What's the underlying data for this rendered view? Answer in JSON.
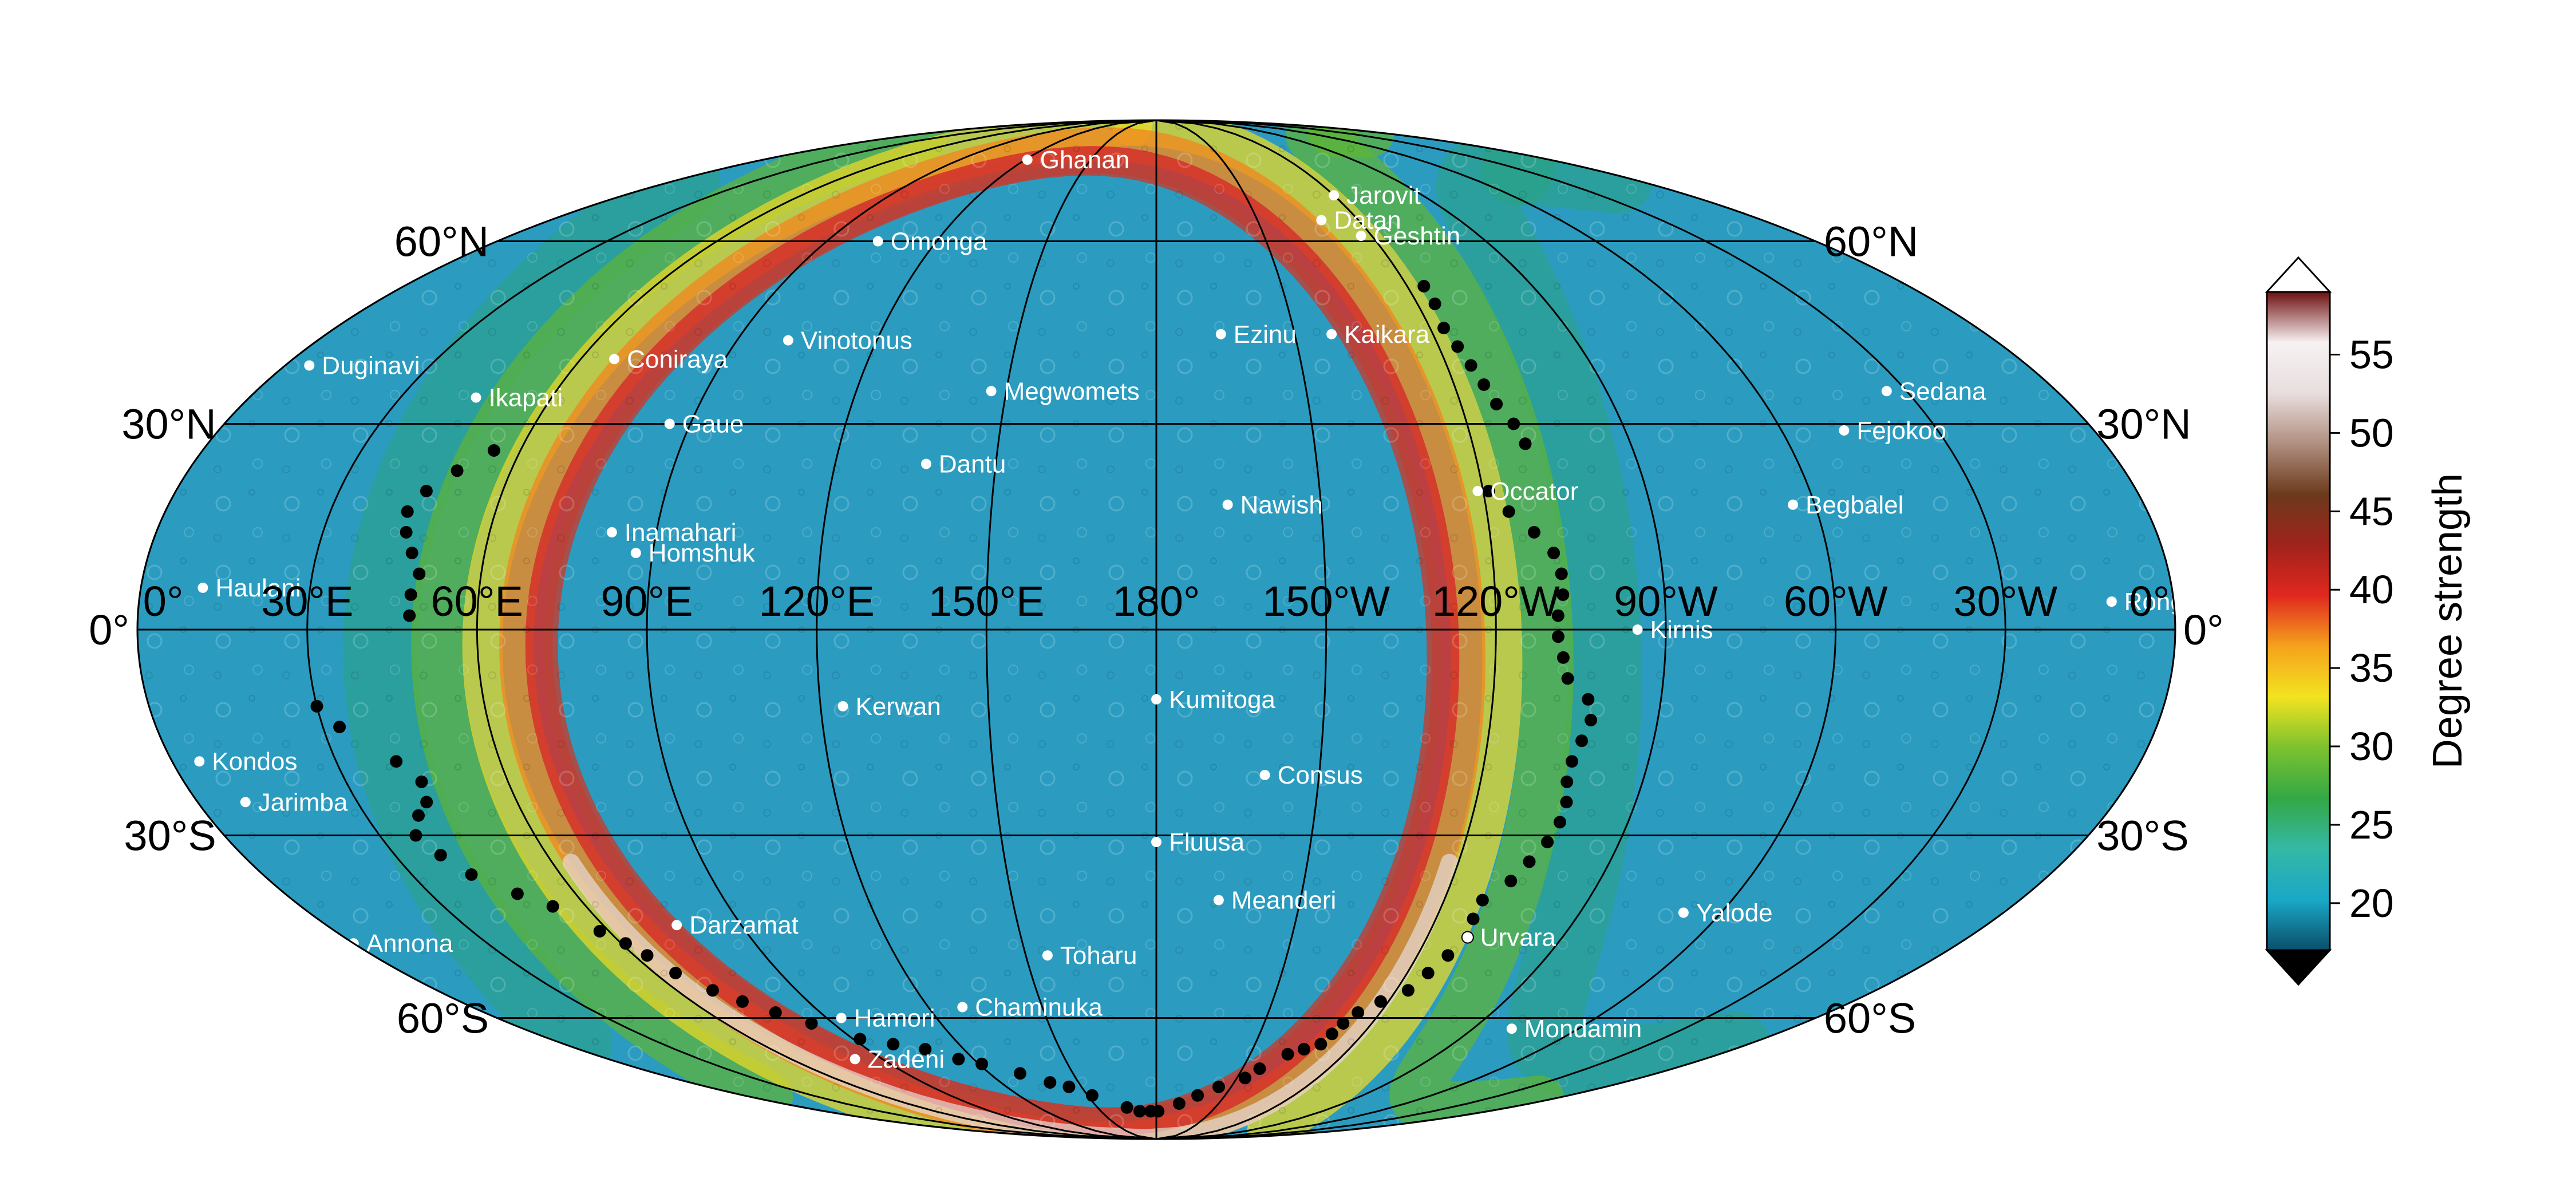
{
  "map": {
    "projection": "Mollweide",
    "central_meridian": "180°",
    "graticule": {
      "latitudes": [
        -60,
        -30,
        0,
        30,
        60
      ],
      "longitudes": [
        0,
        30,
        60,
        90,
        120,
        150,
        180,
        210,
        240,
        270,
        300,
        330,
        360
      ]
    },
    "latitude_labels": {
      "left": [
        {
          "lat": 60,
          "text": "60°N"
        },
        {
          "lat": 30,
          "text": "30°N"
        },
        {
          "lat": 0,
          "text": "0°"
        },
        {
          "lat": -30,
          "text": "30°S"
        },
        {
          "lat": -60,
          "text": "60°S"
        }
      ],
      "right": [
        {
          "lat": 60,
          "text": "60°N"
        },
        {
          "lat": 30,
          "text": "30°N"
        },
        {
          "lat": 0,
          "text": "0°"
        },
        {
          "lat": -30,
          "text": "30°S"
        },
        {
          "lat": -60,
          "text": "60°S"
        }
      ]
    },
    "longitude_labels": [
      {
        "lon": 0,
        "text": "0°"
      },
      {
        "lon": 30,
        "text": "30°E"
      },
      {
        "lon": 60,
        "text": "60°E"
      },
      {
        "lon": 90,
        "text": "90°E"
      },
      {
        "lon": 120,
        "text": "120°E"
      },
      {
        "lon": 150,
        "text": "150°E"
      },
      {
        "lon": 180,
        "text": "180°"
      },
      {
        "lon": 210,
        "text": "150°W"
      },
      {
        "lon": 240,
        "text": "120°W"
      },
      {
        "lon": 270,
        "text": "90°W"
      },
      {
        "lon": 300,
        "text": "60°W"
      },
      {
        "lon": 330,
        "text": "30°W"
      },
      {
        "lon": 360,
        "text": "0°"
      }
    ],
    "features": [
      {
        "name": "Ghanan",
        "lon": 121,
        "lat": 77
      },
      {
        "name": "Jarovit",
        "lon": 240,
        "lat": 69
      },
      {
        "name": "Datan",
        "lon": 229,
        "lat": 64
      },
      {
        "name": "Geshtin",
        "lon": 237,
        "lat": 61
      },
      {
        "name": "Omonga",
        "lon": 104,
        "lat": 60
      },
      {
        "name": "Ezinu",
        "lon": 194,
        "lat": 44
      },
      {
        "name": "Kaikara",
        "lon": 218,
        "lat": 44
      },
      {
        "name": "Coniraya",
        "lon": 67,
        "lat": 40
      },
      {
        "name": "Vinotonus",
        "lon": 101,
        "lat": 43
      },
      {
        "name": "Duginavi",
        "lon": 5,
        "lat": 39
      },
      {
        "name": "Megwomets",
        "lon": 147,
        "lat": 35
      },
      {
        "name": "Sedana",
        "lon": 326,
        "lat": 35
      },
      {
        "name": "Ikapati",
        "lon": 45,
        "lat": 34
      },
      {
        "name": "Gaue",
        "lon": 86,
        "lat": 30
      },
      {
        "name": "Fejokoo",
        "lon": 312,
        "lat": 29
      },
      {
        "name": "Dantu",
        "lon": 137,
        "lat": 24
      },
      {
        "name": "Occator",
        "lon": 239,
        "lat": 20
      },
      {
        "name": "Nawish",
        "lon": 193,
        "lat": 18
      },
      {
        "name": "Begbalel",
        "lon": 296,
        "lat": 18
      },
      {
        "name": "Inamahari",
        "lon": 82,
        "lat": 14
      },
      {
        "name": "Homshuk",
        "lon": 87,
        "lat": 11
      },
      {
        "name": "Haulani",
        "lon": 11,
        "lat": 6
      },
      {
        "name": "Rongo",
        "lon": 349,
        "lat": 4
      },
      {
        "name": "Kirnis",
        "lon": 265,
        "lat": 0
      },
      {
        "name": "Kerwan",
        "lon": 124,
        "lat": -11
      },
      {
        "name": "Kumitoga",
        "lon": 180,
        "lat": -10
      },
      {
        "name": "Consus",
        "lon": 200,
        "lat": -21
      },
      {
        "name": "Kondos",
        "lon": 5,
        "lat": -19
      },
      {
        "name": "Jarimba",
        "lon": 9,
        "lat": -25
      },
      {
        "name": "Fluusa",
        "lon": 180,
        "lat": -31
      },
      {
        "name": "Meanderi",
        "lon": 193,
        "lat": -40
      },
      {
        "name": "Yalode",
        "lon": 292,
        "lat": -42
      },
      {
        "name": "Darzamat",
        "lon": 76,
        "lat": -44
      },
      {
        "name": "Urvara",
        "lon": 249,
        "lat": -46
      },
      {
        "name": "Annona",
        "lon": 0,
        "lat": -47
      },
      {
        "name": "Toharu",
        "lon": 155,
        "lat": -49
      },
      {
        "name": "Chaminuka",
        "lon": 129,
        "lat": -58
      },
      {
        "name": "Hamori",
        "lon": 94,
        "lat": -60
      },
      {
        "name": "Mondamin",
        "lon": 281,
        "lat": -62
      },
      {
        "name": "Zadeni",
        "lon": 81,
        "lat": -68
      }
    ],
    "ring_points": [
      [
        244,
        52
      ],
      [
        244,
        49
      ],
      [
        243,
        45
      ],
      [
        244,
        42
      ],
      [
        245,
        39
      ],
      [
        246,
        36
      ],
      [
        247,
        33
      ],
      [
        249,
        30
      ],
      [
        250,
        27
      ],
      [
        241,
        20
      ],
      [
        244,
        17
      ],
      [
        248,
        14
      ],
      [
        251,
        11
      ],
      [
        252,
        8
      ],
      [
        252,
        5
      ],
      [
        251,
        2
      ],
      [
        251,
        -1
      ],
      [
        252,
        -4
      ],
      [
        253,
        -7
      ],
      [
        257,
        -10
      ],
      [
        258,
        -13
      ],
      [
        257,
        -16
      ],
      [
        256,
        -19
      ],
      [
        256,
        -22
      ],
      [
        257,
        -25
      ],
      [
        257,
        -28
      ],
      [
        256,
        -31
      ],
      [
        254,
        -34
      ],
      [
        252,
        -37
      ],
      [
        248,
        -40
      ],
      [
        248,
        -43
      ],
      [
        249,
        -46
      ],
      [
        247,
        -49
      ],
      [
        245,
        -52
      ],
      [
        243,
        -55
      ],
      [
        238,
        -57
      ],
      [
        234,
        -59
      ],
      [
        232,
        -61
      ],
      [
        231,
        -63
      ],
      [
        230,
        -65
      ],
      [
        226,
        -66
      ],
      [
        222,
        -67
      ],
      [
        216,
        -70
      ],
      [
        213,
        -72
      ],
      [
        205,
        -74
      ],
      [
        198,
        -76
      ],
      [
        191,
        -78
      ],
      [
        181,
        -80
      ],
      [
        177,
        -80
      ],
      [
        171,
        -80
      ],
      [
        165,
        -79
      ],
      [
        152,
        -76
      ],
      [
        145,
        -74
      ],
      [
        139,
        -73
      ],
      [
        131,
        -71
      ],
      [
        121,
        -69
      ],
      [
        115,
        -68
      ],
      [
        108,
        -66
      ],
      [
        100,
        -65
      ],
      [
        92,
        -64
      ],
      [
        84,
        -61
      ],
      [
        78,
        -59
      ],
      [
        73,
        -57
      ],
      [
        69,
        -55
      ],
      [
        65,
        -52
      ],
      [
        63,
        -49
      ],
      [
        61,
        -47
      ],
      [
        58,
        -45
      ],
      [
        53,
        -41
      ],
      [
        48,
        -39
      ],
      [
        42,
        -36
      ],
      [
        39,
        -33
      ],
      [
        37,
        -30
      ],
      [
        40,
        -27
      ],
      [
        43,
        -25
      ],
      [
        44,
        -22
      ],
      [
        41,
        -19
      ],
      [
        33,
        -14
      ],
      [
        30,
        -11
      ],
      [
        48,
        2
      ],
      [
        48,
        5
      ],
      [
        49,
        8
      ],
      [
        47,
        11
      ],
      [
        45,
        14
      ],
      [
        44,
        17
      ],
      [
        46,
        20
      ],
      [
        50,
        23
      ],
      [
        55,
        26
      ]
    ]
  },
  "colorbar": {
    "title": "Degree strength",
    "min": 17,
    "max": 59,
    "ticks": [
      20,
      25,
      30,
      35,
      40,
      45,
      50,
      55
    ],
    "colors": [
      "#0a4f6a",
      "#1aa8c8",
      "#35b8a5",
      "#33a845",
      "#7cc22e",
      "#f2e320",
      "#f5a21c",
      "#e1281f",
      "#a0231c",
      "#6b3a1c",
      "#b08f80",
      "#e8dede",
      "#f7f2f2",
      "#6e1010"
    ],
    "extend": "both"
  }
}
